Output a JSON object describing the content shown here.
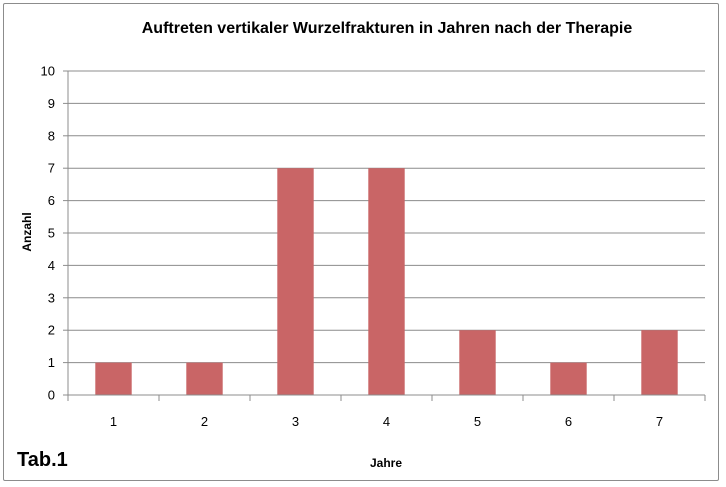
{
  "caption": "Tab.1",
  "chart_data": {
    "type": "bar",
    "title": "Auftreten vertikaler Wurzelfrakturen in Jahren nach der Therapie",
    "xlabel": "Jahre",
    "ylabel": "Anzahl",
    "categories": [
      "1",
      "2",
      "3",
      "4",
      "5",
      "6",
      "7"
    ],
    "values": [
      1,
      1,
      7,
      7,
      2,
      1,
      2
    ],
    "ylim": [
      0,
      10
    ],
    "yticks": [
      "0",
      "1",
      "2",
      "3",
      "4",
      "5",
      "6",
      "7",
      "8",
      "9",
      "10"
    ],
    "grid": true,
    "legend": false,
    "bar_color": "#c96566",
    "grid_color": "#8c8c8c"
  }
}
